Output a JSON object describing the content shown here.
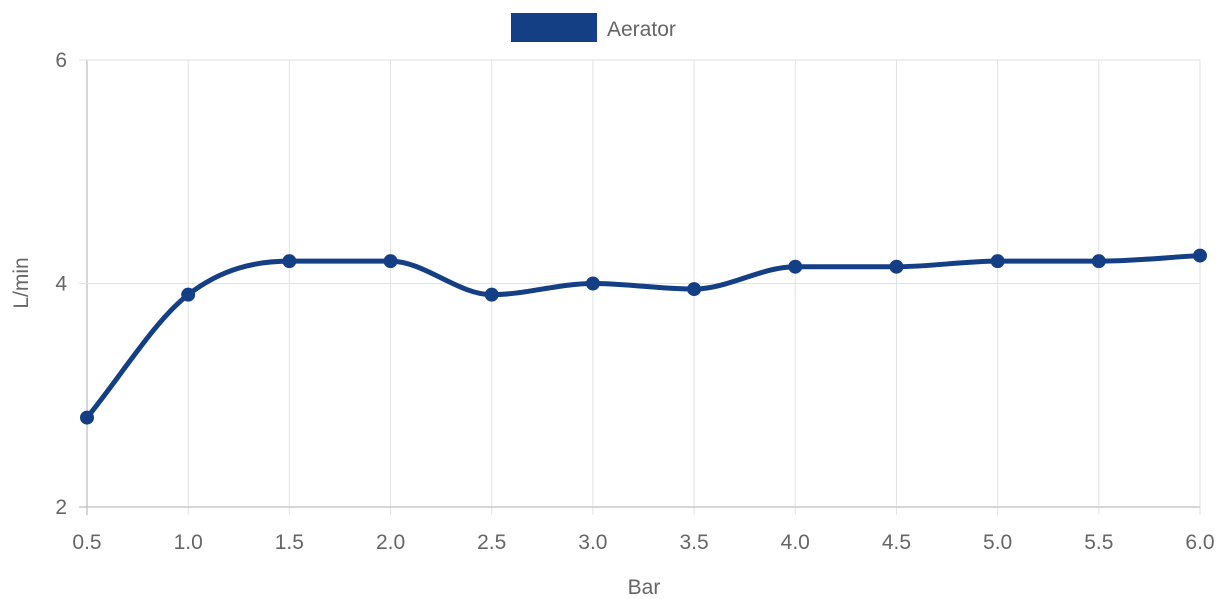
{
  "chart_data": {
    "type": "line",
    "xlabel": "Bar",
    "ylabel": "L/min",
    "xlim": [
      0.5,
      6.0
    ],
    "ylim": [
      2,
      6
    ],
    "x_ticks": [
      "0.5",
      "1.0",
      "1.5",
      "2.0",
      "2.5",
      "3.0",
      "3.5",
      "4.0",
      "4.5",
      "5.0",
      "5.5",
      "6.0"
    ],
    "y_ticks": [
      "2",
      "4",
      "6"
    ],
    "grid": true,
    "legend_position": "top-center",
    "series": [
      {
        "name": "Aerator",
        "color": "#143f85",
        "x": [
          0.5,
          1.0,
          1.5,
          2.0,
          2.5,
          3.0,
          3.5,
          4.0,
          4.5,
          5.0,
          5.5,
          6.0
        ],
        "y": [
          2.8,
          3.9,
          4.2,
          4.2,
          3.9,
          4.0,
          3.95,
          4.15,
          4.15,
          4.2,
          4.2,
          4.25
        ]
      }
    ]
  }
}
